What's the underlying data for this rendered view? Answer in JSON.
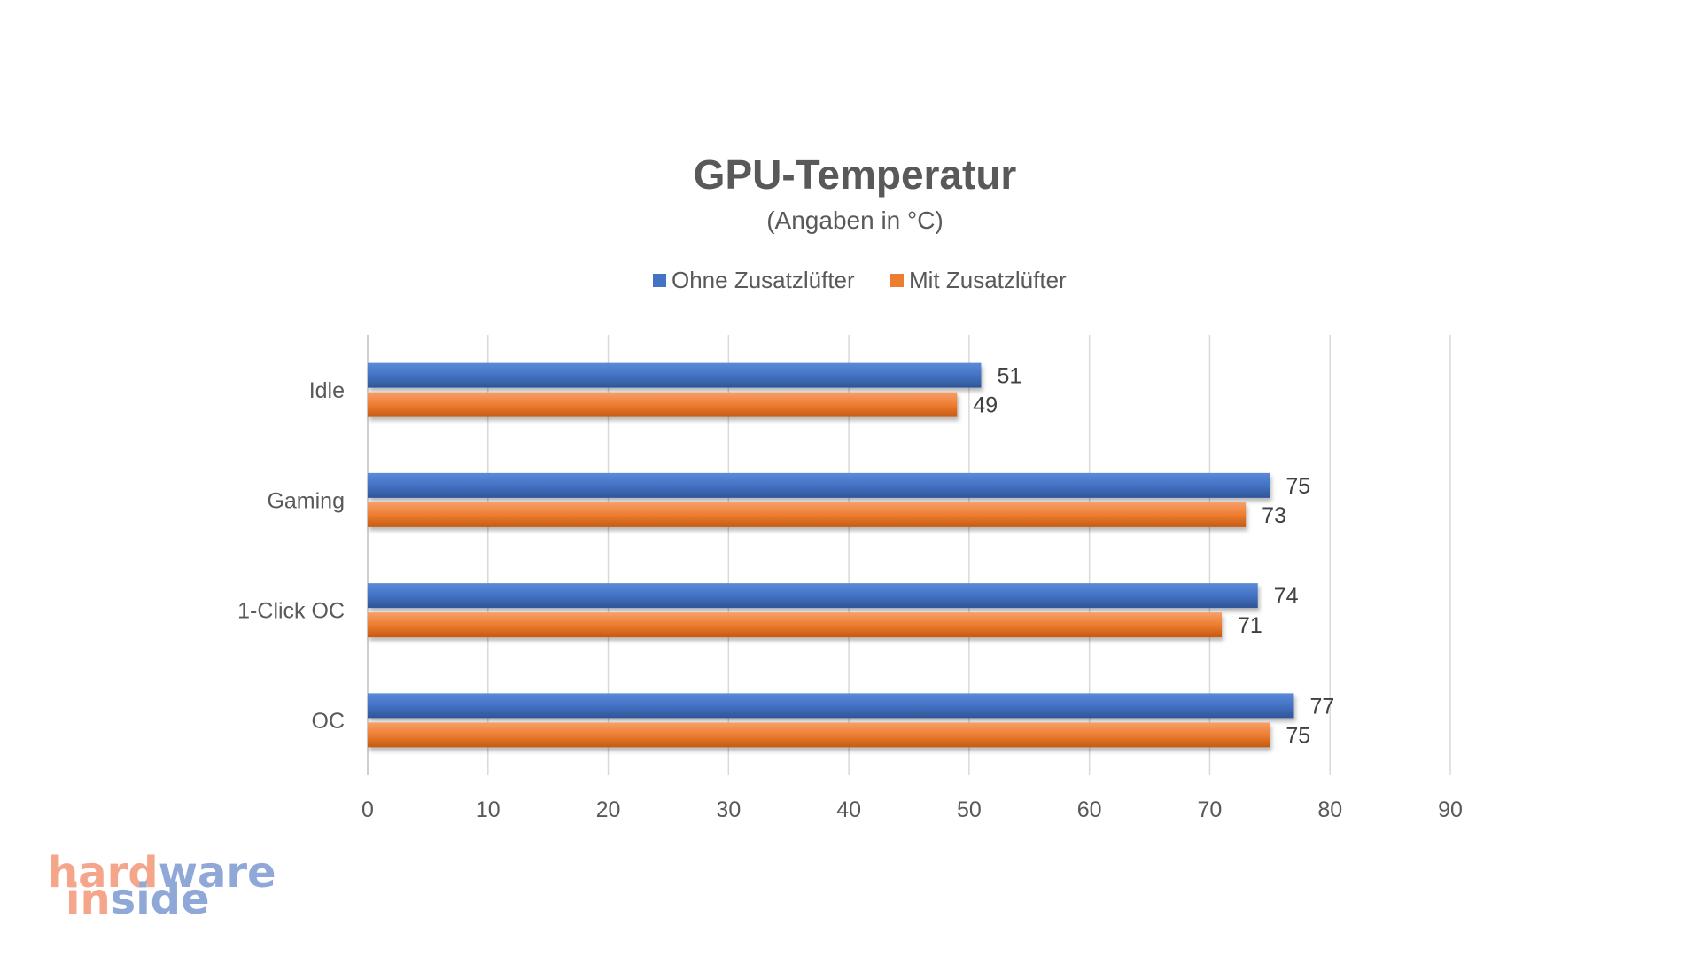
{
  "chart_data": {
    "type": "bar",
    "orientation": "horizontal",
    "title": "GPU-Temperatur",
    "subtitle": "(Angaben in °C)",
    "categories": [
      "Idle",
      "Gaming",
      "1-Click OC",
      "OC"
    ],
    "series": [
      {
        "name": "Ohne Zusatzlüfter",
        "color": "#4472c4",
        "values": [
          51,
          75,
          74,
          77
        ]
      },
      {
        "name": "Mit Zusatzlüfter",
        "color": "#ed7d31",
        "values": [
          49,
          73,
          71,
          75
        ]
      }
    ],
    "xlim": [
      0,
      90
    ],
    "xticks": [
      "0",
      "10",
      "20",
      "30",
      "40",
      "50",
      "60",
      "70",
      "80",
      "90"
    ],
    "grid": true,
    "legend_position": "top",
    "data_labels": true
  },
  "logo": {
    "line1": "hardware",
    "line2": "inside",
    "color_light": "#f4a58a",
    "color_dark": "#8fa8d8"
  }
}
